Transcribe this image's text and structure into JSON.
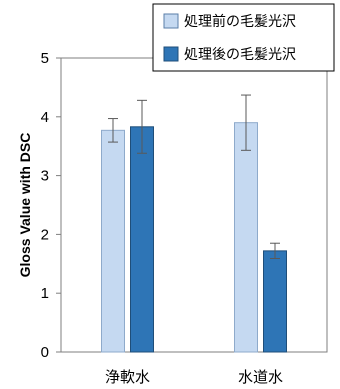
{
  "chart_data": {
    "type": "bar",
    "title": "",
    "xlabel": "",
    "ylabel": "Gloss Value with DSC",
    "categories": [
      "浄軟水",
      "水道水"
    ],
    "series": [
      {
        "name": "処理前の毛髪光沢",
        "values": [
          3.77,
          3.9
        ],
        "errors": [
          0.2,
          0.47
        ],
        "color": "#c5d9f1"
      },
      {
        "name": "処理後の毛髪光沢",
        "values": [
          3.83,
          1.72
        ],
        "errors": [
          0.45,
          0.13
        ],
        "color": "#2e75b6"
      }
    ],
    "ylim": [
      0,
      5
    ],
    "yticks": [
      0,
      1,
      2,
      3,
      4,
      5
    ],
    "grid": false,
    "legend_position": "top-right"
  }
}
